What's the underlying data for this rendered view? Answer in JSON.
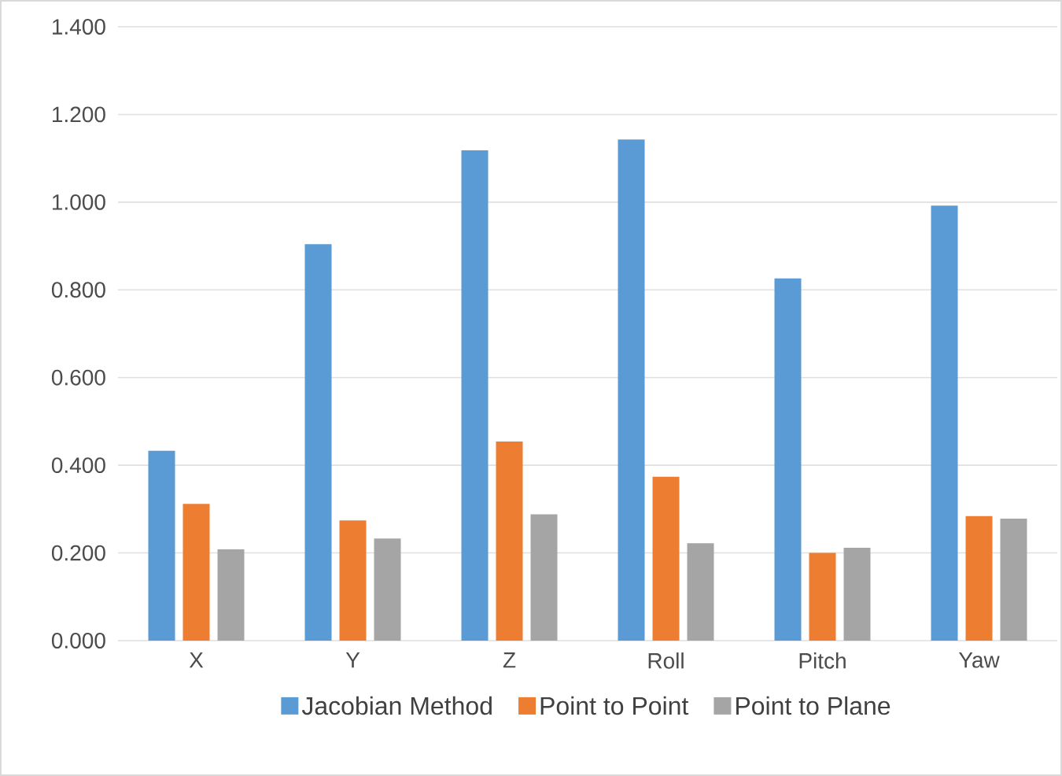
{
  "chart_data": {
    "type": "bar",
    "categories": [
      "X",
      "Y",
      "Z",
      "Roll",
      "Pitch",
      "Yaw"
    ],
    "series": [
      {
        "name": "Jacobian Method",
        "color": "#5b9bd5",
        "values": [
          0.433,
          0.904,
          1.118,
          1.143,
          0.826,
          0.992
        ]
      },
      {
        "name": "Point to Point",
        "color": "#ed7d31",
        "values": [
          0.312,
          0.274,
          0.454,
          0.374,
          0.2,
          0.284
        ]
      },
      {
        "name": "Point to Plane",
        "color": "#a5a5a5",
        "values": [
          0.208,
          0.233,
          0.288,
          0.222,
          0.212,
          0.278
        ]
      }
    ],
    "ylim": [
      0,
      1.4
    ],
    "yticks": [
      {
        "value": 0,
        "label": "0.000"
      },
      {
        "value": 0.2,
        "label": "0.200"
      },
      {
        "value": 0.4,
        "label": "0.400"
      },
      {
        "value": 0.6,
        "label": "0.600"
      },
      {
        "value": 0.8,
        "label": "0.800"
      },
      {
        "value": 1.0,
        "label": "1.000"
      },
      {
        "value": 1.2,
        "label": "1.200"
      },
      {
        "value": 1.4,
        "label": "1.400"
      }
    ],
    "grid": "y",
    "legend": "bottom"
  }
}
